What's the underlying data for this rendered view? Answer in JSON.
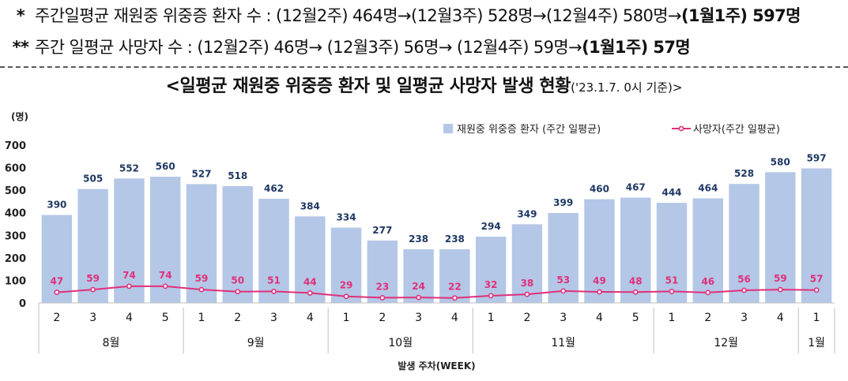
{
  "notes": {
    "line1": {
      "marker": "*",
      "text": "주간일평균 재원중 위중증 환자 수 : (12월2주) 464명→(12월3주) 528명→(12월4주) 580명→",
      "bold_tail": "(1월1주) 597명"
    },
    "line2": {
      "marker": "**",
      "text": "주간 일평균 사망자 수 : (12월2주) 46명→ (12월3주) 56명→ (12월4주) 59명→",
      "bold_tail": "(1월1주) 57명"
    }
  },
  "title": {
    "main": "<일평균 재원중 위중증 환자 및 일평균 사망자 발생 현황",
    "sub": "('23.1.7. 0시 기준)>"
  },
  "chart_data": {
    "type": "bar",
    "title": "",
    "ylabel": "(명)",
    "xlabel": "발생 주차(WEEK)",
    "ylim": [
      0,
      700
    ],
    "yticks": [
      "0",
      "100",
      "200",
      "300",
      "400",
      "500",
      "600",
      "700"
    ],
    "categories": [
      "2",
      "3",
      "4",
      "5",
      "1",
      "2",
      "3",
      "4",
      "1",
      "2",
      "3",
      "4",
      "1",
      "2",
      "3",
      "4",
      "5",
      "1",
      "2",
      "3",
      "4",
      "1"
    ],
    "month_groups": [
      {
        "label": "8월",
        "count": 4
      },
      {
        "label": "9월",
        "count": 4
      },
      {
        "label": "10월",
        "count": 4
      },
      {
        "label": "11월",
        "count": 5
      },
      {
        "label": "12월",
        "count": 4
      },
      {
        "label": "1월",
        "count": 1
      }
    ],
    "series": [
      {
        "name": "재원중 위중증 환자 (주간 일평균)",
        "type": "bar",
        "color": "#b4c7e7",
        "values": [
          390,
          505,
          552,
          560,
          527,
          518,
          462,
          384,
          334,
          277,
          238,
          238,
          294,
          349,
          399,
          460,
          467,
          444,
          464,
          528,
          580,
          597
        ]
      },
      {
        "name": "사망자(주간 일평균)",
        "type": "line",
        "color": "#e0307a",
        "values": [
          47,
          59,
          74,
          74,
          59,
          50,
          51,
          44,
          29,
          23,
          24,
          22,
          32,
          38,
          53,
          49,
          48,
          51,
          46,
          56,
          59,
          57
        ]
      }
    ],
    "legend_position": "top-right",
    "grid": false
  }
}
